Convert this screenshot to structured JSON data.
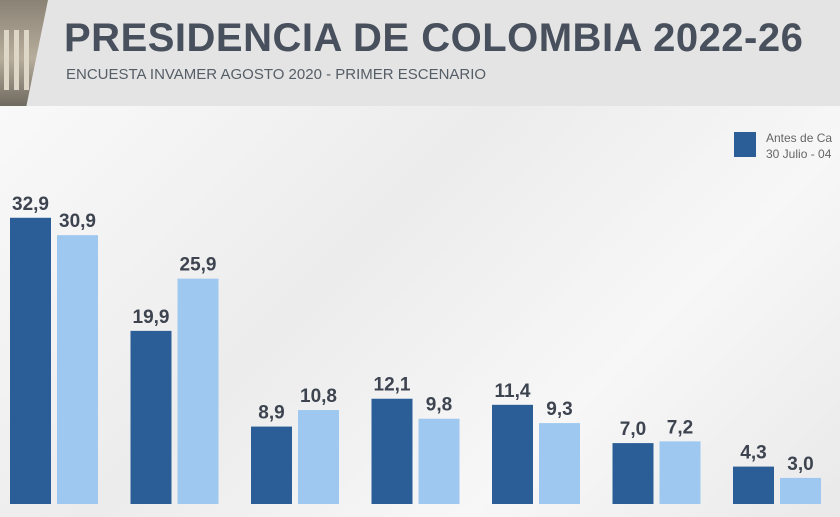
{
  "header": {
    "title": "PRESIDENCIA DE COLOMBIA 2022-26",
    "subtitle": "ENCUESTA INVAMER  AGOSTO 2020 - PRIMER ESCENARIO"
  },
  "colors": {
    "series_dark": "#2b5e97",
    "series_light": "#9ec8ef"
  },
  "chart_data": {
    "type": "bar",
    "title": "PRESIDENCIA DE COLOMBIA 2022-26",
    "subtitle": "ENCUESTA INVAMER  AGOSTO 2020 - PRIMER ESCENARIO",
    "categories": [
      "",
      "",
      "",
      "",
      "",
      "",
      ""
    ],
    "series": [
      {
        "name": "Antes de Ca",
        "name_line2": "30 Julio - 04",
        "color": "#2b5e97",
        "values": [
          32.9,
          19.9,
          8.9,
          12.1,
          11.4,
          7.0,
          4.3
        ],
        "labels": [
          "32,9",
          "19,9",
          "8,9",
          "12,1",
          "11,4",
          "7,0",
          "4,3"
        ]
      },
      {
        "color": "#9ec8ef",
        "values": [
          30.9,
          25.9,
          10.8,
          9.8,
          9.3,
          7.2,
          3.0
        ],
        "labels": [
          "30,9",
          "25,9",
          "10,8",
          "9,8",
          "9,3",
          "7,2",
          "3,0"
        ]
      }
    ],
    "ylim": [
      0,
      35
    ],
    "grid": false,
    "legend_position": "top-right"
  }
}
